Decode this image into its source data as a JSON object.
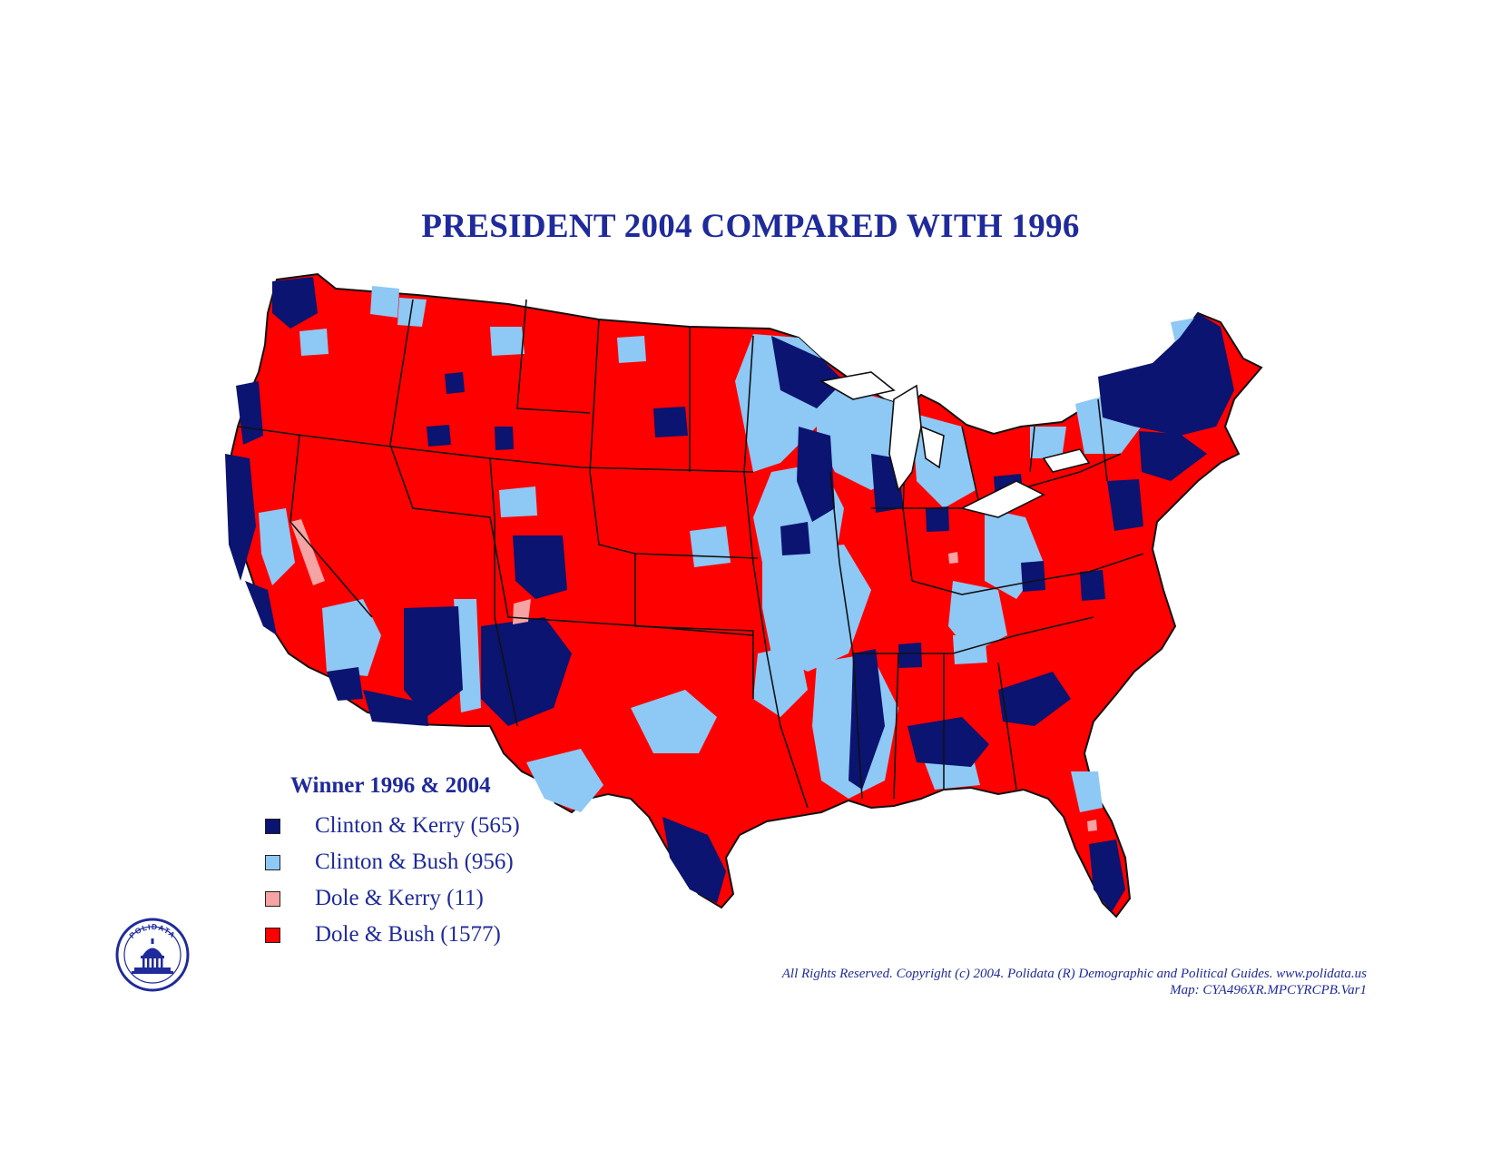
{
  "title": "PRESIDENT 2004 COMPARED WITH 1996",
  "colors": {
    "clinton_kerry": "#0b1470",
    "clinton_bush": "#8ec8f5",
    "dole_kerry": "#f5a3a3",
    "dole_bush": "#ff0000",
    "text": "#1f2a9b",
    "border": "#111111"
  },
  "legend": {
    "title": "Winner 1996 & 2004",
    "items": [
      {
        "label": "Clinton & Kerry (565)",
        "color": "#0b1470"
      },
      {
        "label": "Clinton & Bush (956)",
        "color": "#8ec8f5"
      },
      {
        "label": "Dole & Kerry (11)",
        "color": "#f5a3a3"
      },
      {
        "label": "Dole & Bush (1577)",
        "color": "#ff0000"
      }
    ]
  },
  "logo": {
    "text": "POLIDATA",
    "icon": "capitol-dome-icon"
  },
  "copyright": {
    "line1": "All Rights Reserved. Copyright (c) 2004. Polidata (R) Demographic and Political Guides. www.polidata.us",
    "line2": "Map: CYA496XR.MPCYRCPB.Var1"
  }
}
